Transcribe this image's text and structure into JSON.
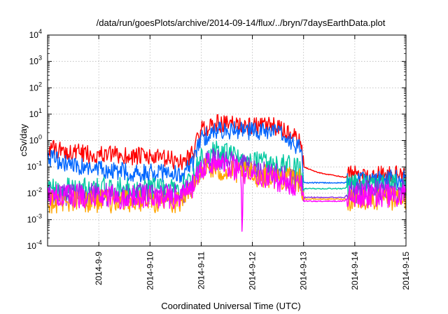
{
  "chart_data": {
    "type": "line",
    "title": "/data/run/goesPlots/archive/2014-09-14/flux/../bryn/7daysEarthData.plot",
    "xlabel": "Coordinated Universal Time (UTC)",
    "ylabel": "cSv/day",
    "yscale": "log",
    "ylim": [
      0.0001,
      10000
    ],
    "xlim": [
      "2014-09-08",
      "2014-09-15"
    ],
    "grid": true,
    "y_ticks": [
      {
        "base": "10",
        "exp": "-4"
      },
      {
        "base": "10",
        "exp": "-3"
      },
      {
        "base": "10",
        "exp": "-2"
      },
      {
        "base": "10",
        "exp": "-1"
      },
      {
        "base": "10",
        "exp": "0"
      },
      {
        "base": "10",
        "exp": "1"
      },
      {
        "base": "10",
        "exp": "2"
      },
      {
        "base": "10",
        "exp": "3"
      },
      {
        "base": "10",
        "exp": "4"
      }
    ],
    "x_ticks": [
      "2014-9-9",
      "2014-9-10",
      "2014-9-11",
      "2014-9-12",
      "2014-9-13",
      "2014-9-14",
      "2014-9-15"
    ],
    "series": [
      {
        "color": "#ff0000",
        "x": [
          0,
          0.3,
          0.8,
          1.3,
          1.8,
          2.3,
          2.65,
          2.85,
          3.0,
          3.3,
          3.6,
          4.0,
          4.4,
          4.7,
          4.95,
          5.0,
          5.3,
          5.8,
          5.9,
          6.0,
          6.5,
          7.0
        ],
        "y": [
          0.5,
          0.4,
          0.3,
          0.28,
          0.25,
          0.2,
          0.15,
          0.4,
          2.5,
          4.5,
          4.0,
          3.5,
          3.5,
          2.0,
          0.8,
          0.1,
          0.06,
          0.04,
          0.05,
          0.05,
          0.05,
          0.05
        ]
      },
      {
        "color": "#0066ff",
        "x": [
          0,
          0.3,
          0.8,
          1.3,
          1.8,
          2.3,
          2.65,
          2.85,
          3.0,
          3.3,
          3.6,
          4.0,
          4.4,
          4.7,
          4.95,
          5.0,
          5.8,
          5.9,
          6.5,
          7.0
        ],
        "y": [
          0.25,
          0.15,
          0.08,
          0.07,
          0.06,
          0.06,
          0.05,
          0.15,
          1.2,
          2.5,
          2.5,
          2.2,
          2.2,
          1.2,
          0.5,
          0.025,
          0.025,
          0.03,
          0.035,
          0.035
        ]
      },
      {
        "color": "#00c8a0",
        "x": [
          0,
          0.5,
          1.0,
          1.5,
          2.0,
          2.6,
          2.85,
          3.0,
          3.3,
          3.6,
          4.0,
          4.4,
          4.7,
          4.95,
          5.0,
          5.8,
          5.9,
          6.5,
          7.0
        ],
        "y": [
          0.012,
          0.015,
          0.015,
          0.014,
          0.015,
          0.015,
          0.04,
          0.2,
          0.35,
          0.25,
          0.15,
          0.12,
          0.1,
          0.07,
          0.015,
          0.015,
          0.02,
          0.02,
          0.02
        ]
      },
      {
        "color": "#8a2be2",
        "x": [
          0,
          0.5,
          1.0,
          1.5,
          2.0,
          2.6,
          2.85,
          3.0,
          3.3,
          3.6,
          4.0,
          4.4,
          4.7,
          4.95,
          5.0,
          5.8,
          5.9,
          6.5,
          7.0
        ],
        "y": [
          0.009,
          0.009,
          0.009,
          0.009,
          0.009,
          0.009,
          0.025,
          0.12,
          0.2,
          0.15,
          0.08,
          0.05,
          0.04,
          0.03,
          0.007,
          0.007,
          0.012,
          0.012,
          0.012
        ]
      },
      {
        "color": "#ffa500",
        "x": [
          0,
          2.6,
          2.85,
          3.0,
          4.95,
          5.0,
          5.8,
          5.9,
          7.0
        ],
        "y": [
          0.005,
          0.005,
          0.015,
          0.09,
          0.03,
          0.006,
          0.006,
          0.006,
          0.006
        ]
      },
      {
        "color": "#ff00ff",
        "x": [
          0,
          0.5,
          1.0,
          1.5,
          2.0,
          2.6,
          2.85,
          3.0,
          3.3,
          3.6,
          3.78,
          3.8,
          3.82,
          4.0,
          4.4,
          4.7,
          4.95,
          5.0,
          5.8,
          5.9,
          6.5,
          7.0
        ],
        "y": [
          0.008,
          0.008,
          0.007,
          0.007,
          0.007,
          0.007,
          0.02,
          0.1,
          0.15,
          0.1,
          0.06,
          9e-05,
          0.05,
          0.05,
          0.035,
          0.025,
          0.02,
          0.005,
          0.005,
          0.008,
          0.008,
          0.008
        ]
      }
    ]
  }
}
